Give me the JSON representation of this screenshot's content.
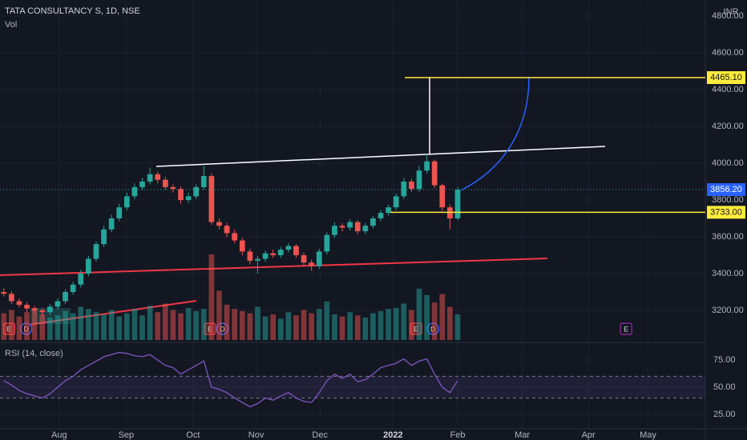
{
  "chart_data": [
    {
      "type": "candlestick",
      "title": "TATA CONSULTANCY S, 1D, NSE",
      "y_axis_label": "INR",
      "categories": [
        null,
        null,
        null,
        null,
        null,
        null,
        null,
        null,
        null,
        null,
        null,
        null,
        null,
        null,
        null,
        null,
        null,
        null,
        null,
        null,
        null,
        null,
        null,
        null,
        null,
        null,
        null,
        null,
        null,
        null,
        null,
        null,
        null,
        null,
        null,
        null,
        null,
        null,
        null,
        null,
        null,
        null,
        null,
        null,
        null,
        null,
        null,
        null,
        null,
        null,
        null,
        null,
        null,
        null,
        null,
        null,
        null,
        null,
        null,
        null
      ],
      "open": [
        3300,
        3290,
        3250,
        3230,
        3210,
        3200,
        3190,
        3220,
        3250,
        3300,
        3340,
        3400,
        3480,
        3560,
        3640,
        3700,
        3760,
        3820,
        3870,
        3900,
        3940,
        3910,
        3870,
        3860,
        3800,
        3820,
        3870,
        3930,
        3680,
        3660,
        3620,
        3580,
        3520,
        3470,
        3480,
        3510,
        3500,
        3530,
        3550,
        3500,
        3460,
        3440,
        3520,
        3610,
        3660,
        3650,
        3680,
        3630,
        3660,
        3700,
        3730,
        3760,
        3820,
        3900,
        3860,
        3960,
        4010,
        3880,
        3760,
        3700
      ],
      "high": [
        3320,
        3305,
        3265,
        3245,
        3225,
        3215,
        3235,
        3265,
        3315,
        3355,
        3420,
        3495,
        3575,
        3660,
        3720,
        3780,
        3840,
        3890,
        3920,
        3975,
        3955,
        3925,
        3885,
        3875,
        3840,
        3885,
        3985,
        3945,
        3700,
        3675,
        3640,
        3595,
        3535,
        3495,
        3525,
        3530,
        3545,
        3565,
        3560,
        3515,
        3475,
        3535,
        3625,
        3680,
        3675,
        3695,
        3690,
        3675,
        3715,
        3745,
        3775,
        3835,
        3920,
        3915,
        3985,
        4050,
        4020,
        3890,
        3775,
        3870
      ],
      "low": [
        3275,
        3235,
        3215,
        3190,
        3180,
        3170,
        3175,
        3205,
        3235,
        3285,
        3325,
        3385,
        3465,
        3545,
        3625,
        3685,
        3745,
        3805,
        3855,
        3885,
        3890,
        3855,
        3840,
        3780,
        3785,
        3805,
        3855,
        3665,
        3640,
        3600,
        3565,
        3500,
        3450,
        3400,
        3465,
        3485,
        3485,
        3515,
        3485,
        3440,
        3415,
        3425,
        3505,
        3595,
        3630,
        3635,
        3615,
        3615,
        3645,
        3685,
        3715,
        3745,
        3805,
        3845,
        3845,
        3945,
        3865,
        3740,
        3640,
        3690
      ],
      "close": [
        3290,
        3250,
        3230,
        3210,
        3200,
        3190,
        3220,
        3250,
        3300,
        3340,
        3400,
        3480,
        3560,
        3640,
        3700,
        3760,
        3820,
        3870,
        3900,
        3940,
        3910,
        3870,
        3860,
        3800,
        3820,
        3870,
        3930,
        3680,
        3660,
        3620,
        3580,
        3520,
        3470,
        3480,
        3510,
        3500,
        3530,
        3550,
        3500,
        3460,
        3440,
        3520,
        3610,
        3660,
        3650,
        3680,
        3630,
        3660,
        3700,
        3730,
        3760,
        3820,
        3900,
        3860,
        3960,
        4010,
        3880,
        3760,
        3700,
        3856
      ],
      "up_color": "#26a69a",
      "down_color": "#ef5350",
      "ylim": [
        3039,
        4887
      ],
      "yticks": [
        {
          "value": 3200,
          "label": "3200.00"
        },
        {
          "value": 3400,
          "label": "3400.00"
        },
        {
          "value": 3600,
          "label": "3600.00"
        },
        {
          "value": 3800,
          "label": "3800.00"
        },
        {
          "value": 4000,
          "label": "4000.00"
        },
        {
          "value": 4200,
          "label": "4200.00"
        },
        {
          "value": 4400,
          "label": "4400.00"
        },
        {
          "value": 4600,
          "label": "4600.00"
        },
        {
          "value": 4800,
          "label": "4800.00"
        }
      ],
      "xlim": [
        -0.5,
        91.2
      ],
      "xticks": [
        {
          "value": 7.2,
          "label": "Aug"
        },
        {
          "value": 15.9,
          "label": "Sep"
        },
        {
          "value": 24.6,
          "label": "Oct"
        },
        {
          "value": 32.8,
          "label": "Nov"
        },
        {
          "value": 41.1,
          "label": "Dec"
        },
        {
          "value": 50.6,
          "label": "2022"
        },
        {
          "value": 59,
          "label": "Feb"
        },
        {
          "value": 67.4,
          "label": "Mar"
        },
        {
          "value": 76,
          "label": "Apr"
        },
        {
          "value": 83.75,
          "label": "May"
        }
      ],
      "grid": true,
      "price_lines": [
        {
          "value": 4465.1,
          "label": "4465.10",
          "color": "#ffeb3b"
        },
        {
          "value": 3733,
          "label": "3733.00",
          "color": "#ffeb3b"
        }
      ],
      "last_price": {
        "value": 3856.2,
        "label": "3856.20",
        "color": "#2962ff"
      },
      "events": [
        {
          "label": "E",
          "x": 0.7
        },
        {
          "label": "D",
          "x": 2.9
        },
        {
          "label": "E",
          "x": 26.8
        },
        {
          "label": "D",
          "x": 28.4
        },
        {
          "label": "E",
          "x": 53.6
        },
        {
          "label": "D",
          "x": 55.8
        },
        {
          "label": "E",
          "x": 80.9
        }
      ]
    },
    {
      "type": "volume",
      "title": "Vol",
      "values": [
        2.5,
        2.8,
        2.2,
        2.6,
        3.0,
        2.4,
        2.1,
        2.3,
        2.7,
        2.5,
        3.1,
        2.9,
        2.6,
        2.4,
        2.8,
        2.2,
        2.5,
        2.9,
        2.3,
        3.2,
        2.6,
        3.4,
        2.8,
        2.5,
        3.0,
        2.7,
        2.9,
        8.0,
        4.6,
        3.3,
        2.9,
        2.7,
        2.5,
        3.1,
        2.2,
        2.4,
        2.0,
        2.6,
        2.3,
        2.8,
        2.5,
        2.9,
        3.6,
        2.4,
        2.2,
        2.6,
        2.3,
        2.1,
        2.5,
        2.7,
        2.9,
        3.0,
        3.4,
        2.8,
        4.8,
        4.2,
        3.5,
        4.3,
        3.1,
        2.4
      ]
    },
    {
      "type": "line",
      "title": "RSI (14, close)",
      "color": "#7e57c2",
      "values": [
        56,
        52,
        47,
        44,
        42,
        40,
        44,
        50,
        56,
        60,
        66,
        70,
        74,
        78,
        80,
        82,
        81,
        79,
        78,
        80,
        75,
        70,
        68,
        62,
        66,
        70,
        74,
        50,
        48,
        45,
        40,
        36,
        32,
        35,
        40,
        38,
        42,
        45,
        40,
        37,
        36,
        45,
        56,
        62,
        58,
        62,
        55,
        57,
        62,
        68,
        70,
        72,
        76,
        70,
        74,
        76,
        62,
        50,
        45,
        56
      ],
      "ylim": [
        12.5,
        89.7
      ],
      "yticks": [
        {
          "value": 25,
          "label": "25.00"
        },
        {
          "value": 50,
          "label": "50.00"
        },
        {
          "value": 75,
          "label": "75.00"
        }
      ],
      "band": [
        60,
        40
      ]
    }
  ]
}
